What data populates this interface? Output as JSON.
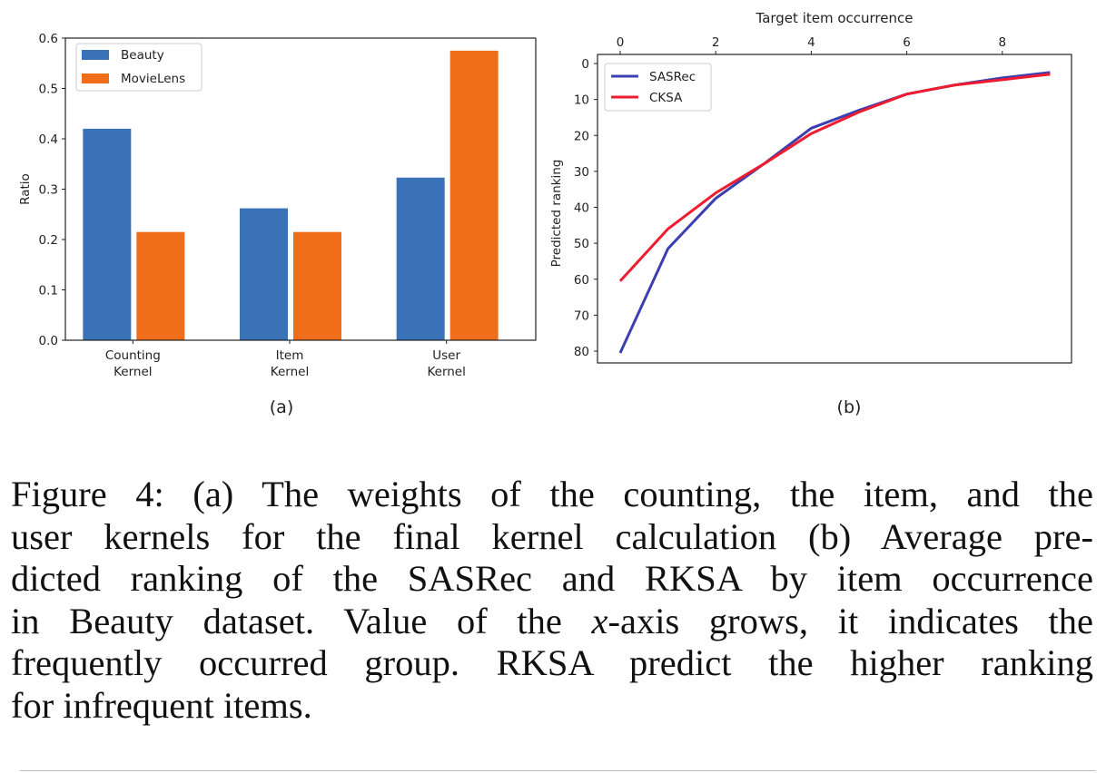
{
  "chart_data": [
    {
      "type": "bar",
      "panel_label": "(a)",
      "title": "",
      "xlabel": "",
      "ylabel": "Ratio",
      "categories": [
        [
          "Counting",
          "Kernel"
        ],
        [
          "Item",
          "Kernel"
        ],
        [
          "User",
          "Kernel"
        ]
      ],
      "series": [
        {
          "name": "Beauty",
          "color": "#3a72b8",
          "values": [
            0.42,
            0.262,
            0.323
          ]
        },
        {
          "name": "MovieLens",
          "color": "#f06e1a",
          "values": [
            0.215,
            0.215,
            0.575
          ]
        }
      ],
      "ylim": [
        0,
        0.6
      ],
      "yticks": [
        "0.0",
        "0.1",
        "0.2",
        "0.3",
        "0.4",
        "0.5",
        "0.6"
      ],
      "legend": "top-left",
      "grid": false
    },
    {
      "type": "line",
      "panel_label": "(b)",
      "title": "",
      "xlabel": "Target item occurrence",
      "xlabel_position": "top",
      "ylabel": "Predicted ranking",
      "y_inverted": true,
      "x": [
        0,
        1,
        2,
        3,
        4,
        5,
        6,
        7,
        8,
        9
      ],
      "series": [
        {
          "name": "SASRec",
          "color": "#3b3fb0",
          "values": [
            80.5,
            51.5,
            37.5,
            28,
            18,
            13,
            8.5,
            6,
            4,
            2.5
          ]
        },
        {
          "name": "CKSA",
          "color": "#ee1c2e",
          "values": [
            60.5,
            46,
            36,
            28,
            19.5,
            13.5,
            8.5,
            6,
            4.5,
            3
          ]
        }
      ],
      "xlim": [
        -0.45,
        9.45
      ],
      "ylim": [
        82,
        -2.5
      ],
      "xticks": [
        "0",
        "2",
        "4",
        "6",
        "8"
      ],
      "yticks": [
        "0",
        "10",
        "20",
        "30",
        "40",
        "50",
        "60",
        "70",
        "80"
      ],
      "legend": "top-left",
      "grid": false
    }
  ],
  "caption": {
    "lines": [
      "Figure 4: (a) The weights of the counting, the item, and the",
      "user kernels for the final kernel calculation (b) Average pre-",
      "dicted ranking of the SASRec and RKSA by item occurrence",
      "in Beauty dataset. Value of the "
    ],
    "x_var": "x",
    "line5_rest": "-axis grows, it indicates the",
    "line6": "frequently occurred group. RKSA predict the higher ranking",
    "line7": "for infrequent items."
  }
}
